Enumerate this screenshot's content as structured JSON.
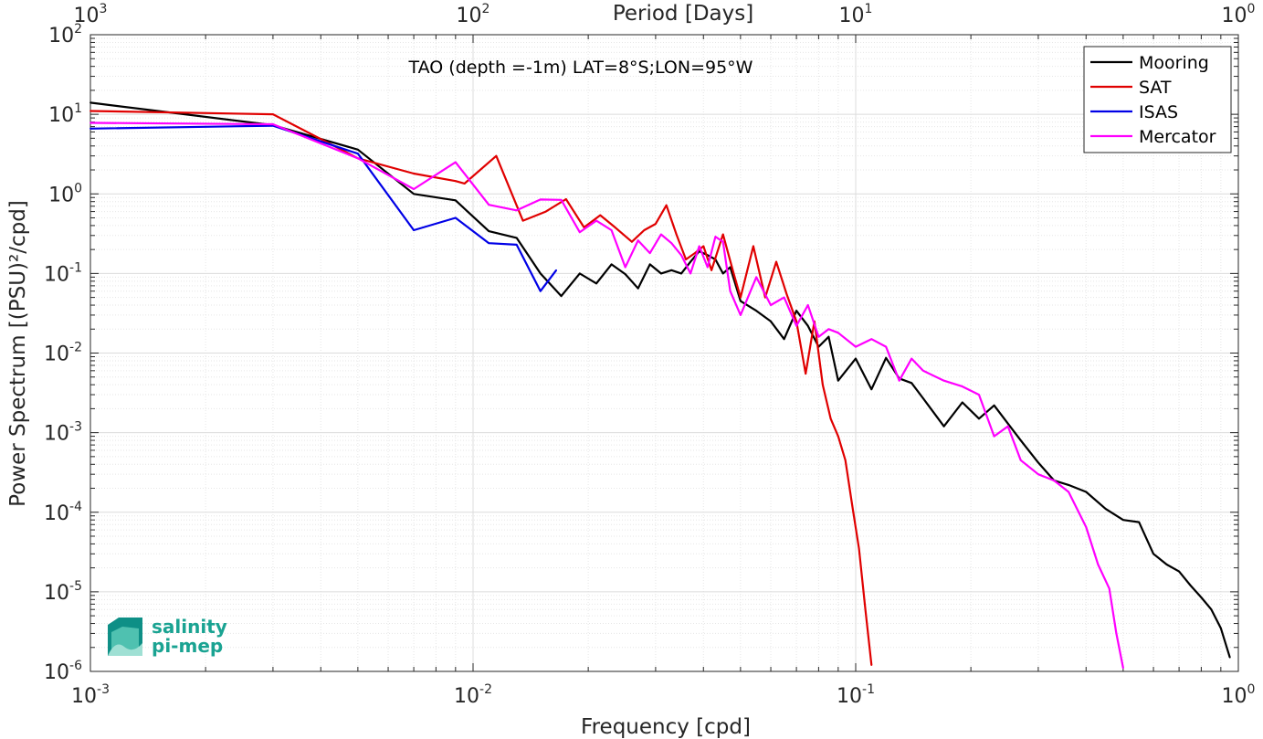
{
  "chart_data": {
    "type": "line",
    "title": "TAO (depth =-1m) LAT=8°S;LON=95°W",
    "xlabel": "Frequency [cpd]",
    "ylabel": "Power Spectrum [(PSU)²/cpd]",
    "top_xlabel": "Period [Days]",
    "xscale": "log",
    "yscale": "log",
    "xlim": [
      0.001,
      1
    ],
    "ylim": [
      1e-06,
      100
    ],
    "grid": true,
    "legend_position": "top-right",
    "x_ticks": [
      {
        "value": 0.001,
        "base": "10",
        "exp": "-3"
      },
      {
        "value": 0.01,
        "base": "10",
        "exp": "-2"
      },
      {
        "value": 0.1,
        "base": "10",
        "exp": "-1"
      },
      {
        "value": 1,
        "base": "10",
        "exp": "0"
      }
    ],
    "top_ticks": [
      {
        "value": 0.001,
        "base": "10",
        "exp": "3"
      },
      {
        "value": 0.01,
        "base": "10",
        "exp": "2"
      },
      {
        "value": 0.1,
        "base": "10",
        "exp": "1"
      },
      {
        "value": 1,
        "base": "10",
        "exp": "0"
      }
    ],
    "y_ticks": [
      {
        "value": 100,
        "base": "10",
        "exp": "2"
      },
      {
        "value": 10,
        "base": "10",
        "exp": "1"
      },
      {
        "value": 1,
        "base": "10",
        "exp": "0"
      },
      {
        "value": 0.1,
        "base": "10",
        "exp": "-1"
      },
      {
        "value": 0.01,
        "base": "10",
        "exp": "-2"
      },
      {
        "value": 0.001,
        "base": "10",
        "exp": "-3"
      },
      {
        "value": 0.0001,
        "base": "10",
        "exp": "-4"
      },
      {
        "value": 1e-05,
        "base": "10",
        "exp": "-5"
      },
      {
        "value": 1e-06,
        "base": "10",
        "exp": "-6"
      }
    ],
    "series": [
      {
        "name": "Mooring",
        "color": "#000000",
        "x": [
          0.001,
          0.003,
          0.005,
          0.007,
          0.009,
          0.011,
          0.013,
          0.015,
          0.017,
          0.019,
          0.021,
          0.023,
          0.025,
          0.027,
          0.029,
          0.031,
          0.033,
          0.035,
          0.037,
          0.039,
          0.041,
          0.043,
          0.045,
          0.047,
          0.05,
          0.055,
          0.06,
          0.065,
          0.07,
          0.075,
          0.08,
          0.085,
          0.09,
          0.1,
          0.11,
          0.12,
          0.13,
          0.14,
          0.15,
          0.17,
          0.19,
          0.21,
          0.23,
          0.25,
          0.27,
          0.3,
          0.33,
          0.36,
          0.4,
          0.45,
          0.5,
          0.55,
          0.6,
          0.65,
          0.7,
          0.75,
          0.8,
          0.85,
          0.9,
          0.95
        ],
        "y": [
          14,
          7.3,
          3.6,
          1.0,
          0.83,
          0.34,
          0.28,
          0.1,
          0.052,
          0.1,
          0.075,
          0.13,
          0.098,
          0.065,
          0.13,
          0.1,
          0.11,
          0.1,
          0.14,
          0.19,
          0.17,
          0.15,
          0.1,
          0.12,
          0.045,
          0.034,
          0.025,
          0.015,
          0.034,
          0.022,
          0.012,
          0.016,
          0.0045,
          0.0085,
          0.0035,
          0.0087,
          0.0048,
          0.0042,
          0.0027,
          0.0012,
          0.0024,
          0.0015,
          0.0022,
          0.0013,
          0.0008,
          0.00042,
          0.00025,
          0.00022,
          0.00018,
          0.00011,
          8e-05,
          7.5e-05,
          3e-05,
          2.2e-05,
          1.8e-05,
          1.2e-05,
          8.5e-06,
          6e-06,
          3.5e-06,
          1.5e-06
        ]
      },
      {
        "name": "SAT",
        "color": "#e00000",
        "x": [
          0.001,
          0.003,
          0.005,
          0.007,
          0.009,
          0.0095,
          0.0115,
          0.0135,
          0.0155,
          0.0175,
          0.0195,
          0.0215,
          0.0235,
          0.026,
          0.028,
          0.03,
          0.032,
          0.034,
          0.036,
          0.038,
          0.04,
          0.042,
          0.045,
          0.048,
          0.05,
          0.054,
          0.058,
          0.062,
          0.066,
          0.07,
          0.074,
          0.078,
          0.082,
          0.086,
          0.09,
          0.094,
          0.098,
          0.102,
          0.106,
          0.11
        ],
        "y": [
          11,
          10,
          2.8,
          1.8,
          1.45,
          1.35,
          3.0,
          0.46,
          0.6,
          0.86,
          0.38,
          0.54,
          0.38,
          0.25,
          0.35,
          0.42,
          0.72,
          0.31,
          0.15,
          0.18,
          0.22,
          0.11,
          0.31,
          0.1,
          0.05,
          0.22,
          0.05,
          0.14,
          0.055,
          0.025,
          0.0055,
          0.025,
          0.004,
          0.0015,
          0.0009,
          0.00045,
          0.00012,
          3.5e-05,
          6e-06,
          1.2e-06
        ]
      },
      {
        "name": "ISAS",
        "color": "#0000e6",
        "x": [
          0.001,
          0.003,
          0.005,
          0.007,
          0.009,
          0.011,
          0.013,
          0.015,
          0.0165
        ],
        "y": [
          6.6,
          7.2,
          3.2,
          0.35,
          0.5,
          0.24,
          0.23,
          0.06,
          0.11
        ]
      },
      {
        "name": "Mercator",
        "color": "#ff00ff",
        "x": [
          0.001,
          0.003,
          0.005,
          0.007,
          0.009,
          0.011,
          0.013,
          0.015,
          0.017,
          0.019,
          0.021,
          0.023,
          0.025,
          0.027,
          0.029,
          0.031,
          0.033,
          0.035,
          0.037,
          0.039,
          0.041,
          0.043,
          0.045,
          0.047,
          0.05,
          0.055,
          0.06,
          0.065,
          0.07,
          0.075,
          0.08,
          0.085,
          0.09,
          0.1,
          0.11,
          0.12,
          0.13,
          0.14,
          0.15,
          0.17,
          0.19,
          0.21,
          0.23,
          0.25,
          0.27,
          0.3,
          0.33,
          0.36,
          0.4,
          0.43,
          0.46,
          0.48,
          0.5
        ],
        "y": [
          7.8,
          7.5,
          2.8,
          1.15,
          2.5,
          0.73,
          0.62,
          0.85,
          0.84,
          0.33,
          0.46,
          0.35,
          0.12,
          0.26,
          0.18,
          0.31,
          0.24,
          0.17,
          0.1,
          0.22,
          0.12,
          0.29,
          0.25,
          0.06,
          0.03,
          0.09,
          0.04,
          0.05,
          0.022,
          0.04,
          0.016,
          0.02,
          0.018,
          0.012,
          0.015,
          0.012,
          0.0045,
          0.0085,
          0.006,
          0.0045,
          0.0038,
          0.003,
          0.0009,
          0.0012,
          0.00045,
          0.0003,
          0.00025,
          0.00018,
          6.5e-05,
          2.2e-05,
          1.1e-05,
          3e-06,
          1.1e-06
        ]
      }
    ]
  },
  "logo": {
    "line1": "salinity",
    "line2": "pi-mep"
  }
}
